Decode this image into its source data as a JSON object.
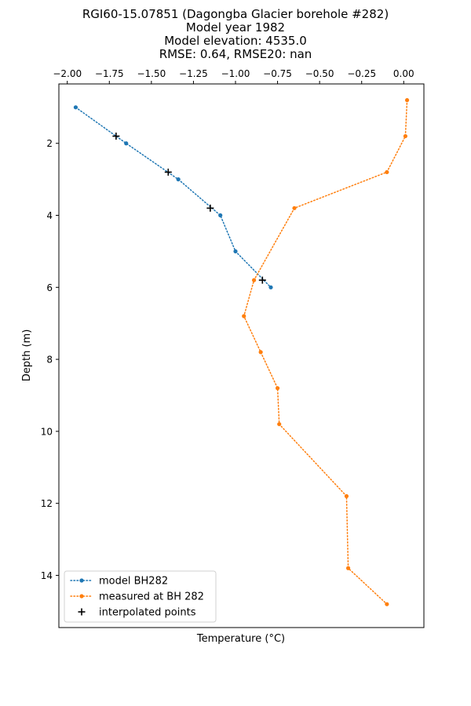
{
  "chart_data": {
    "type": "line",
    "title_lines": [
      "RGI60-15.07851 (Dagongba Glacier borehole #282)",
      "Model year 1982",
      "Model elevation: 4535.0",
      "RMSE: 0.64, RMSE20: nan"
    ],
    "xlabel": "Temperature (°C)",
    "ylabel": "Depth (m)",
    "xlim": [
      -2.05,
      0.12
    ],
    "ylim": [
      15.45,
      0.35
    ],
    "y_inverted": true,
    "x_axis_position": "top",
    "grid": false,
    "legend_position": "lower-left",
    "xticks": [
      -2.0,
      -1.75,
      -1.5,
      -1.25,
      -1.0,
      -0.75,
      -0.5,
      -0.25,
      0.0
    ],
    "xtick_labels": [
      "−2.00",
      "−1.75",
      "−1.50",
      "−1.25",
      "−1.00",
      "−0.75",
      "−0.50",
      "−0.25",
      "0.00"
    ],
    "yticks": [
      2,
      4,
      6,
      8,
      10,
      12,
      14
    ],
    "ytick_labels": [
      "2",
      "4",
      "6",
      "8",
      "10",
      "12",
      "14"
    ],
    "series": [
      {
        "name": "model BH282",
        "color": "#1f77b4",
        "style": "dotted-line-with-dots",
        "x": [
          -1.95,
          -1.65,
          -1.34,
          -1.09,
          -1.0,
          -0.79
        ],
        "y": [
          1.0,
          2.0,
          3.0,
          4.0,
          5.0,
          6.0
        ]
      },
      {
        "name": "measured at BH 282",
        "color": "#ff7f0e",
        "style": "dotted-line-with-dots",
        "x": [
          0.02,
          0.01,
          -0.1,
          -0.65,
          -0.89,
          -0.95,
          -0.85,
          -0.75,
          -0.74,
          -0.34,
          -0.33,
          -0.1
        ],
        "y": [
          0.8,
          1.8,
          2.8,
          3.8,
          5.8,
          6.8,
          7.8,
          8.8,
          9.8,
          11.8,
          13.8,
          14.8
        ]
      },
      {
        "name": "interpolated points",
        "color": "#000000",
        "style": "plus-markers",
        "x": [
          -1.71,
          -1.4,
          -1.15,
          -0.84
        ],
        "y": [
          1.8,
          2.8,
          3.8,
          5.8
        ]
      }
    ]
  }
}
